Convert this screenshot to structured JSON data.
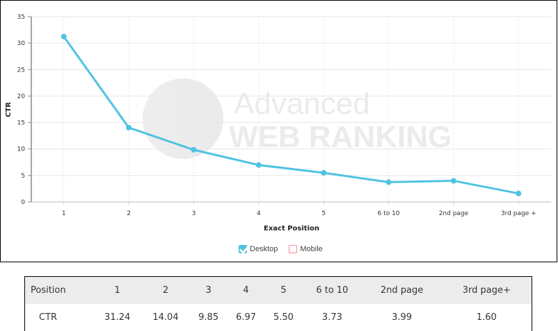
{
  "chart_data": {
    "type": "line",
    "title": "",
    "xlabel": "Exact Position",
    "ylabel": "CTR",
    "categories": [
      "1",
      "2",
      "3",
      "4",
      "5",
      "6 to 10",
      "2nd page",
      "3rd page +"
    ],
    "series": [
      {
        "name": "Desktop",
        "values": [
          31.24,
          14.04,
          9.85,
          6.97,
          5.5,
          3.73,
          3.99,
          1.6
        ],
        "color": "#4ec3e0",
        "visible": true
      },
      {
        "name": "Mobile",
        "values": [],
        "color": "#f08a98",
        "visible": false
      }
    ],
    "ylim": [
      0,
      35
    ],
    "yticks": [
      0,
      5,
      10,
      15,
      20,
      25,
      30,
      35
    ],
    "grid": true,
    "legend_position": "bottom",
    "watermark": "Advanced WEB RANKING"
  },
  "axis": {
    "ylabel": "CTR",
    "xlabel": "Exact Position",
    "yticks": [
      "0",
      "5",
      "10",
      "15",
      "20",
      "25",
      "30",
      "35"
    ],
    "xticks": [
      "1",
      "2",
      "3",
      "4",
      "5",
      "6 to 10",
      "2nd page",
      "3rd page +"
    ]
  },
  "watermark": {
    "line1": "Advanced",
    "line2": "WEB RANKING"
  },
  "legend": {
    "desktop": {
      "label": "Desktop",
      "checked": true
    },
    "mobile": {
      "label": "Mobile",
      "checked": false
    }
  },
  "table": {
    "header": [
      "Position",
      "1",
      "2",
      "3",
      "4",
      "5",
      "6 to 10",
      "2nd page",
      "3rd page+"
    ],
    "row": [
      "CTR",
      "31.24",
      "14.04",
      "9.85",
      "6.97",
      "5.50",
      "3.73",
      "3.99",
      "1.60"
    ]
  }
}
